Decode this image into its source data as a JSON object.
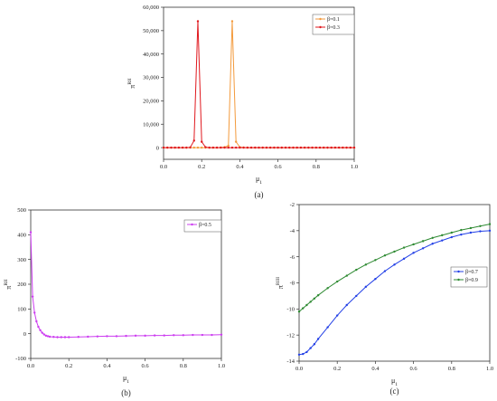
{
  "chart_data": [
    {
      "panel": "(a)",
      "type": "line",
      "xlabel": "μ1",
      "ylabel": "π^RII",
      "xlim": [
        0,
        1
      ],
      "ylim": [
        -5000,
        60000
      ],
      "xticks": [
        "0.0",
        "0.2",
        "0.4",
        "0.6",
        "0.8",
        "1.0"
      ],
      "yticks": [
        "0",
        "10,000",
        "20,000",
        "30,000",
        "40,000",
        "50,000",
        "60,000"
      ],
      "legend": "top-right",
      "x": [
        0,
        0.02,
        0.04,
        0.06,
        0.08,
        0.1,
        0.12,
        0.14,
        0.16,
        0.18,
        0.2,
        0.22,
        0.24,
        0.26,
        0.28,
        0.3,
        0.32,
        0.34,
        0.36,
        0.38,
        0.4,
        0.42,
        0.44,
        0.46,
        0.48,
        0.5,
        0.52,
        0.54,
        0.56,
        0.58,
        0.6,
        0.62,
        0.64,
        0.66,
        0.68,
        0.7,
        0.72,
        0.74,
        0.76,
        0.78,
        0.8,
        0.82,
        0.84,
        0.86,
        0.88,
        0.9,
        0.92,
        0.94,
        0.96,
        0.98,
        1.0
      ],
      "series": [
        {
          "name": "β=0.1",
          "color": "#f39a3c",
          "values": [
            0,
            0,
            0,
            0,
            0,
            0,
            0,
            0,
            0,
            0,
            0,
            0,
            0,
            0,
            0,
            50,
            200,
            800,
            54000,
            2500,
            200,
            50,
            0,
            0,
            0,
            0,
            0,
            0,
            0,
            0,
            0,
            0,
            0,
            0,
            0,
            0,
            0,
            0,
            0,
            0,
            0,
            0,
            0,
            0,
            0,
            0,
            0,
            0,
            0,
            0,
            0
          ]
        },
        {
          "name": "β=0.3",
          "color": "#e0181e",
          "values": [
            0,
            0,
            0,
            0,
            0,
            0,
            0,
            100,
            3000,
            54000,
            2500,
            200,
            0,
            0,
            0,
            0,
            0,
            0,
            0,
            0,
            0,
            0,
            0,
            0,
            0,
            0,
            0,
            0,
            0,
            0,
            0,
            0,
            0,
            0,
            0,
            0,
            0,
            0,
            0,
            0,
            0,
            0,
            0,
            0,
            0,
            0,
            0,
            0,
            0,
            0,
            0
          ]
        }
      ]
    },
    {
      "panel": "(b)",
      "type": "line",
      "xlabel": "μ1",
      "ylabel": "π^RII",
      "xlim": [
        0,
        1
      ],
      "ylim": [
        -100,
        500
      ],
      "xticks": [
        "0.0",
        "0.2",
        "0.4",
        "0.6",
        "0.8",
        "1.0"
      ],
      "yticks": [
        "-100",
        "0",
        "100",
        "200",
        "300",
        "400",
        "500"
      ],
      "legend": "top-right",
      "x": [
        0,
        0.01,
        0.02,
        0.03,
        0.04,
        0.05,
        0.06,
        0.07,
        0.08,
        0.09,
        0.1,
        0.12,
        0.14,
        0.16,
        0.18,
        0.2,
        0.25,
        0.3,
        0.35,
        0.4,
        0.45,
        0.5,
        0.55,
        0.6,
        0.65,
        0.7,
        0.75,
        0.8,
        0.85,
        0.9,
        0.95,
        1.0
      ],
      "series": [
        {
          "name": "β=0.5",
          "color": "#cc3cf0",
          "values": [
            410,
            150,
            85,
            50,
            28,
            14,
            4,
            -3,
            -8,
            -10,
            -12,
            -13,
            -14,
            -14,
            -14,
            -14,
            -13,
            -12,
            -11,
            -10,
            -10,
            -9,
            -8,
            -8,
            -7,
            -7,
            -6,
            -6,
            -5,
            -5,
            -5,
            -4
          ]
        }
      ]
    },
    {
      "panel": "(c)",
      "type": "line",
      "xlabel": "μ1",
      "ylabel": "π^RIII",
      "xlim": [
        0,
        1
      ],
      "ylim": [
        -14,
        -2
      ],
      "xticks": [
        "0.0",
        "0.2",
        "0.4",
        "0.6",
        "0.8",
        "1.0"
      ],
      "yticks": [
        "-14",
        "-12",
        "-10",
        "-8",
        "-6",
        "-4",
        "-2"
      ],
      "legend": "right",
      "x": [
        0,
        0.02,
        0.04,
        0.06,
        0.08,
        0.1,
        0.15,
        0.2,
        0.25,
        0.3,
        0.35,
        0.4,
        0.45,
        0.5,
        0.55,
        0.6,
        0.65,
        0.7,
        0.75,
        0.8,
        0.85,
        0.9,
        0.95,
        1.0
      ],
      "series": [
        {
          "name": "β=0.7",
          "color": "#2340e6",
          "values": [
            -13.5,
            -13.45,
            -13.3,
            -13.0,
            -12.7,
            -12.3,
            -11.4,
            -10.5,
            -9.7,
            -9.0,
            -8.3,
            -7.7,
            -7.1,
            -6.6,
            -6.15,
            -5.7,
            -5.35,
            -5.0,
            -4.75,
            -4.5,
            -4.3,
            -4.15,
            -4.05,
            -4.0
          ]
        },
        {
          "name": "β=0.9",
          "color": "#2e8a32",
          "values": [
            -10.2,
            -9.95,
            -9.7,
            -9.45,
            -9.2,
            -8.95,
            -8.4,
            -7.9,
            -7.45,
            -7.0,
            -6.6,
            -6.25,
            -5.9,
            -5.6,
            -5.3,
            -5.05,
            -4.8,
            -4.55,
            -4.35,
            -4.15,
            -3.95,
            -3.8,
            -3.65,
            -3.5
          ]
        }
      ]
    }
  ]
}
